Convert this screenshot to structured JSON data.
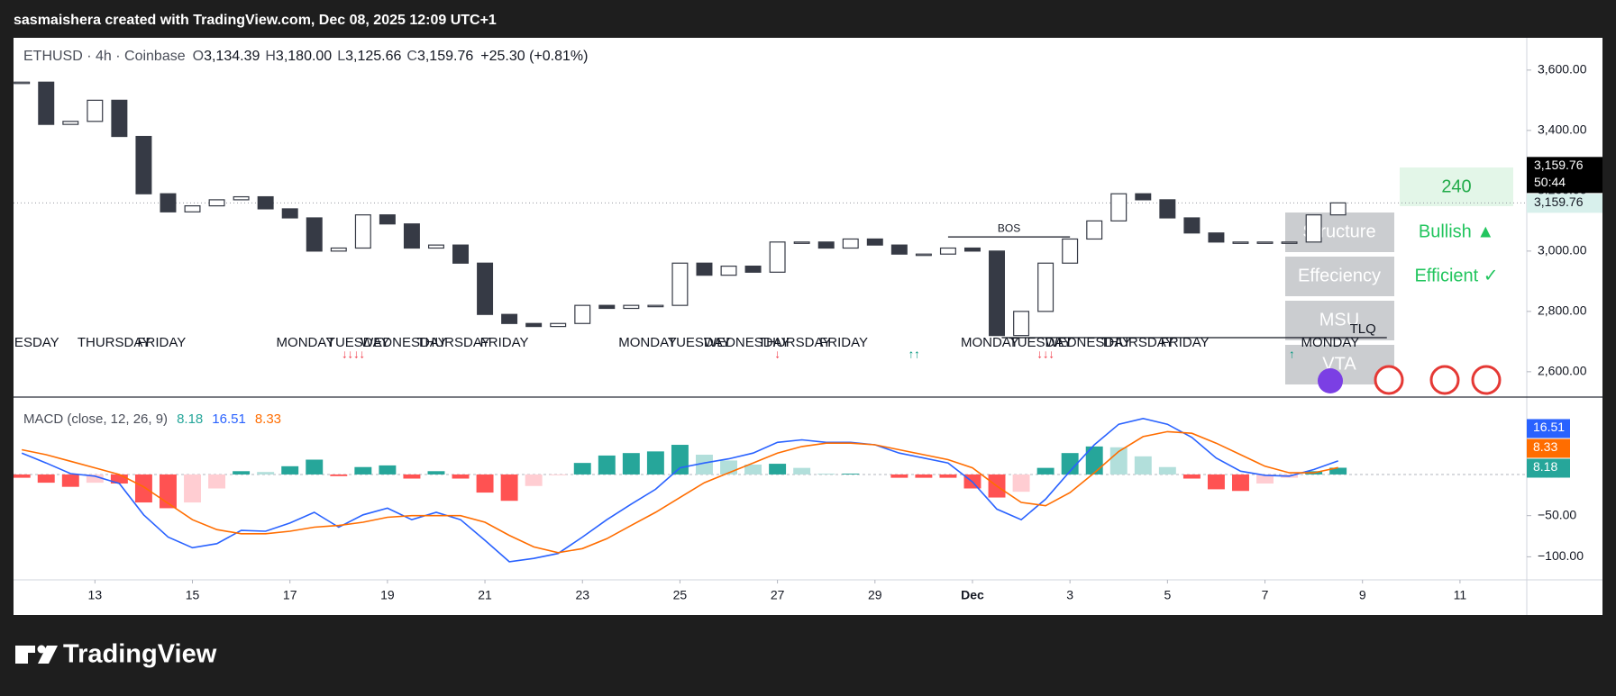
{
  "header": {
    "text": "sasmaishera created with TradingView.com, Dec 08, 2025 12:09 UTC+1"
  },
  "footer": {
    "brand": "TradingView"
  },
  "indicator_panel": {
    "timeframe": "240",
    "rows": [
      {
        "label": "Structure",
        "value": "Bullish ▲"
      },
      {
        "label": "Effeciency",
        "value": "Efficient ✓"
      },
      {
        "label": "MSU"
      },
      {
        "label": "VTA"
      }
    ]
  },
  "chart_data": [
    {
      "type": "candlestick",
      "legend": {
        "symbol": "ETHUSD · 4h · Coinbase",
        "ohlc": [
          [
            "O",
            "3,134.39"
          ],
          [
            "H",
            "3,180.00"
          ],
          [
            "L",
            "3,125.66"
          ],
          [
            "C",
            "3,159.76"
          ]
        ],
        "change": "+25.30 (+0.81%)"
      },
      "countdown": "50:44",
      "x": [
        11.5,
        12,
        12.5,
        13,
        13.5,
        14,
        14.5,
        15,
        15.5,
        16,
        16.5,
        17,
        17.5,
        18,
        18.5,
        19,
        19.5,
        20,
        20.5,
        21,
        21.5,
        22,
        22.5,
        23,
        23.5,
        24,
        24.5,
        25,
        25.5,
        26,
        26.5,
        27,
        27.5,
        28,
        28.5,
        29,
        29.5,
        30,
        30.5,
        31,
        31.5,
        32,
        32.5,
        33,
        33.5,
        34,
        34.5,
        35,
        35.5,
        36,
        36.5,
        37,
        37.5,
        38,
        38.5
      ],
      "values": [
        3560,
        3420,
        3430,
        3500,
        3380,
        3190,
        3130,
        3150,
        3170,
        3180,
        3140,
        3110,
        3000,
        3010,
        3120,
        3090,
        3010,
        3020,
        2960,
        2790,
        2760,
        2750,
        2760,
        2820,
        2810,
        2820,
        2820,
        2960,
        2920,
        2950,
        2930,
        3030,
        3030,
        3010,
        3040,
        3020,
        2990,
        2990,
        3010,
        3000,
        2720,
        2800,
        2960,
        3040,
        3100,
        3190,
        3170,
        3110,
        3060,
        3030,
        3030,
        3030,
        3030,
        3120,
        3159.76
      ],
      "up_color": "#ffffff",
      "down_color": "#363a45",
      "xlim": [
        11.33,
        42.37
      ],
      "ylim": [
        2516,
        3707
      ],
      "yticks": [
        {
          "value": 2600,
          "label": "2,600.00"
        },
        {
          "value": 2800,
          "label": "2,800.00"
        },
        {
          "value": 3000,
          "label": "3,000.00"
        },
        {
          "value": 3200,
          "label": "3,200.00"
        },
        {
          "value": 3400,
          "label": "3,400.00"
        },
        {
          "value": 3600,
          "label": "3,600.00"
        }
      ],
      "grid": false,
      "levels": [
        {
          "text": "BOS",
          "x": [
            30.5,
            33
          ],
          "y": 3047
        },
        {
          "text": "TLQ",
          "x": [
            31.6,
            39.5
          ],
          "y": 2713
        }
      ],
      "weekdays": [
        {
          "text": "WEDNESDAY",
          "x": 10.5
        },
        {
          "text": "THURSDAY",
          "x": 12.64
        },
        {
          "text": "FRIDAY",
          "x": 13.87
        },
        {
          "text": "MONDAY",
          "x": 16.72
        },
        {
          "text": "TUESDAY",
          "x": 17.76
        },
        {
          "text": "WEDNESDAY",
          "x": 18.45
        },
        {
          "text": "THURSDAY",
          "x": 19.6
        },
        {
          "text": "FRIDAY",
          "x": 20.9
        },
        {
          "text": "MONDAY",
          "x": 23.74
        },
        {
          "text": "TUESDAY",
          "x": 24.75
        },
        {
          "text": "WEDNESDAY",
          "x": 25.49
        },
        {
          "text": "THURSDAY",
          "x": 26.6
        },
        {
          "text": "FRIDAY",
          "x": 27.86
        },
        {
          "text": "MONDAY",
          "x": 30.76
        },
        {
          "text": "TUESDAY",
          "x": 31.75
        },
        {
          "text": "WEDNESDAY",
          "x": 32.49
        },
        {
          "text": "THURSDAY",
          "x": 33.63
        },
        {
          "text": "FRIDAY",
          "x": 34.86
        },
        {
          "text": "MONDAY",
          "x": 37.74
        }
      ],
      "signals": [
        {
          "text": "↓↓↓↓",
          "x": 18.3,
          "color": "#f23645"
        },
        {
          "text": "↓",
          "x": 27.0,
          "color": "#f23645"
        },
        {
          "text": "↑↑",
          "x": 29.8,
          "color": "#089981"
        },
        {
          "text": "↓↓↓",
          "x": 32.5,
          "color": "#f23645"
        },
        {
          "text": "↑",
          "x": 37.55,
          "color": "#089981"
        }
      ]
    },
    {
      "type": "macd",
      "title": "MACD (close, 12, 26, 9)",
      "x": [
        11.5,
        12,
        12.5,
        13,
        13.5,
        14,
        14.5,
        15,
        15.5,
        16,
        16.5,
        17,
        17.5,
        18,
        18.5,
        19,
        19.5,
        20,
        20.5,
        21,
        21.5,
        22,
        22.5,
        23,
        23.5,
        24,
        24.5,
        25,
        25.5,
        26,
        26.5,
        27,
        27.5,
        28,
        28.5,
        29,
        29.5,
        30,
        30.5,
        31,
        31.5,
        32,
        32.5,
        33,
        33.5,
        34,
        34.5,
        35,
        35.5,
        36,
        36.5,
        37,
        37.5,
        38,
        38.5
      ],
      "histogram": {
        "colors": [
          "#26a69a",
          "#b2dfdb",
          "#ffcdd2",
          "#ff5252"
        ],
        "values": [
          -4,
          -10,
          -15,
          -10,
          -11,
          -34,
          -41,
          -34,
          -17,
          4,
          3,
          10,
          18,
          -2,
          9,
          11,
          -5,
          4,
          -5,
          -22,
          -32,
          -14,
          -1,
          14,
          23,
          26,
          28,
          36,
          24,
          17,
          12,
          13,
          8,
          1,
          1,
          0,
          -4,
          -4,
          -4,
          -17,
          -28,
          -21,
          8,
          26,
          34,
          33,
          22,
          9,
          -5,
          -18,
          -20,
          -11,
          -4,
          4,
          8.18
        ]
      },
      "macd": {
        "color": "#2962ff",
        "values": [
          26,
          14,
          1,
          -2,
          -11,
          -49,
          -76,
          -89,
          -84,
          -68,
          -69,
          -59,
          -46,
          -64,
          -49,
          -41,
          -55,
          -46,
          -55,
          -80,
          -106,
          -102,
          -96,
          -76,
          -55,
          -36,
          -18,
          8,
          14,
          19,
          26,
          39,
          42,
          39,
          39,
          36,
          26,
          20,
          14,
          -9,
          -42,
          -55,
          -30,
          4,
          36,
          61,
          68,
          61,
          45,
          20,
          4,
          -1,
          -2,
          6,
          16.51
        ]
      },
      "signal": {
        "color": "#ff6d00",
        "values": [
          30,
          24,
          16,
          8,
          0,
          -15,
          -35,
          -55,
          -67,
          -72,
          -72,
          -69,
          -64,
          -62,
          -58,
          -52,
          -50,
          -50,
          -50,
          -58,
          -74,
          -88,
          -95,
          -90,
          -78,
          -62,
          -46,
          -28,
          -10,
          2,
          14,
          26,
          34,
          38,
          38,
          36,
          30,
          24,
          18,
          8,
          -14,
          -34,
          -38,
          -22,
          2,
          28,
          46,
          52,
          50,
          38,
          24,
          10,
          2,
          2,
          8.33
        ]
      },
      "xlim": [
        11.33,
        42.37
      ],
      "ylim": [
        -128,
        94
      ],
      "yticks": [
        {
          "value": 0,
          "label": "0.00"
        },
        {
          "value": -50,
          "label": "−50.00"
        },
        {
          "value": -100,
          "label": "−100.00"
        }
      ],
      "xticks": [
        13,
        15,
        17,
        19,
        21,
        23,
        25,
        27,
        29,
        {
          "value": 31,
          "label": "Dec"
        },
        {
          "value": 33,
          "label": "3"
        },
        {
          "value": 35,
          "label": "5"
        },
        {
          "value": 37,
          "label": "7"
        },
        {
          "value": 39,
          "label": "9"
        },
        {
          "value": 41,
          "label": "11"
        }
      ]
    }
  ]
}
